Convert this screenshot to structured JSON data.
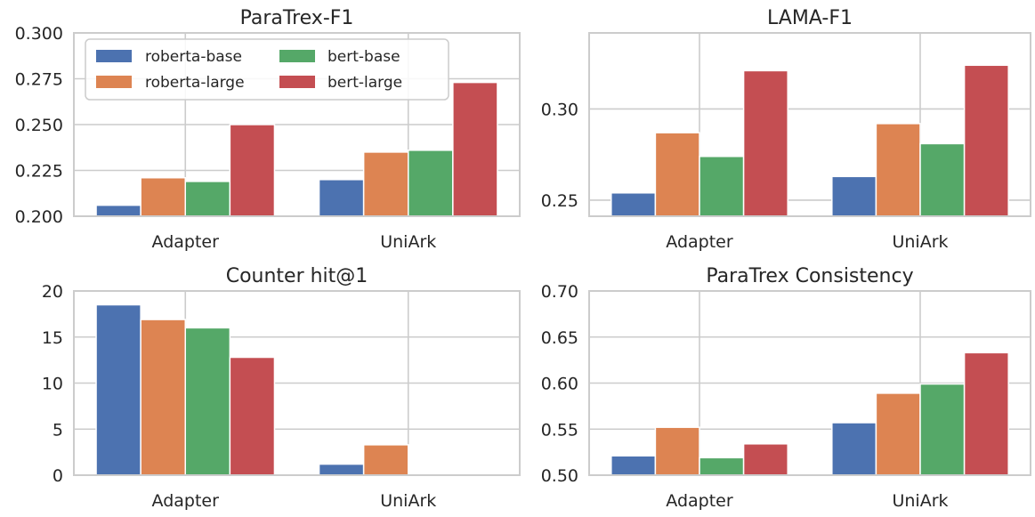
{
  "chart_data": [
    {
      "type": "bar",
      "title": "ParaTrex-F1",
      "categories": [
        "Adapter",
        "UniArk"
      ],
      "series": [
        {
          "name": "roberta-base",
          "values": [
            0.206,
            0.22
          ]
        },
        {
          "name": "roberta-large",
          "values": [
            0.221,
            0.235
          ]
        },
        {
          "name": "bert-base",
          "values": [
            0.219,
            0.236
          ]
        },
        {
          "name": "bert-large",
          "values": [
            0.25,
            0.273
          ]
        }
      ],
      "ylim": [
        0.2,
        0.3
      ],
      "yticks": [
        "0.200",
        "0.225",
        "0.250",
        "0.275",
        "0.300"
      ],
      "grid": true,
      "legend": "top-left"
    },
    {
      "type": "bar",
      "title": "LAMA-F1",
      "categories": [
        "Adapter",
        "UniArk"
      ],
      "series": [
        {
          "name": "roberta-base",
          "values": [
            0.254,
            0.263
          ]
        },
        {
          "name": "roberta-large",
          "values": [
            0.287,
            0.292
          ]
        },
        {
          "name": "bert-base",
          "values": [
            0.274,
            0.281
          ]
        },
        {
          "name": "bert-large",
          "values": [
            0.321,
            0.324
          ]
        }
      ],
      "ylim": [
        0.2412,
        0.3417
      ],
      "yticks": [
        "0.25",
        "0.30"
      ],
      "grid": true
    },
    {
      "type": "bar",
      "title": "Counter hit@1",
      "categories": [
        "Adapter",
        "UniArk"
      ],
      "series": [
        {
          "name": "roberta-base",
          "values": [
            18.5,
            1.2
          ]
        },
        {
          "name": "roberta-large",
          "values": [
            16.9,
            3.3
          ]
        },
        {
          "name": "bert-base",
          "values": [
            16.0,
            0
          ]
        },
        {
          "name": "bert-large",
          "values": [
            12.8,
            0
          ]
        }
      ],
      "ylim": [
        0,
        20
      ],
      "yticks": [
        "0",
        "5",
        "10",
        "15",
        "20"
      ],
      "grid": true
    },
    {
      "type": "bar",
      "title": "ParaTrex Consistency",
      "categories": [
        "Adapter",
        "UniArk"
      ],
      "series": [
        {
          "name": "roberta-base",
          "values": [
            0.521,
            0.557
          ]
        },
        {
          "name": "roberta-large",
          "values": [
            0.552,
            0.589
          ]
        },
        {
          "name": "bert-base",
          "values": [
            0.519,
            0.599
          ]
        },
        {
          "name": "bert-large",
          "values": [
            0.534,
            0.633
          ]
        }
      ],
      "ylim": [
        0.5,
        0.7
      ],
      "yticks": [
        "0.50",
        "0.55",
        "0.60",
        "0.65",
        "0.70"
      ],
      "grid": true
    }
  ],
  "legend": {
    "entries": [
      {
        "label": "roberta-base",
        "color": "#4c72b0"
      },
      {
        "label": "roberta-large",
        "color": "#dd8452"
      },
      {
        "label": "bert-base",
        "color": "#55a868"
      },
      {
        "label": "bert-large",
        "color": "#c44e52"
      }
    ]
  },
  "colors": [
    "#4c72b0",
    "#dd8452",
    "#55a868",
    "#c44e52"
  ]
}
